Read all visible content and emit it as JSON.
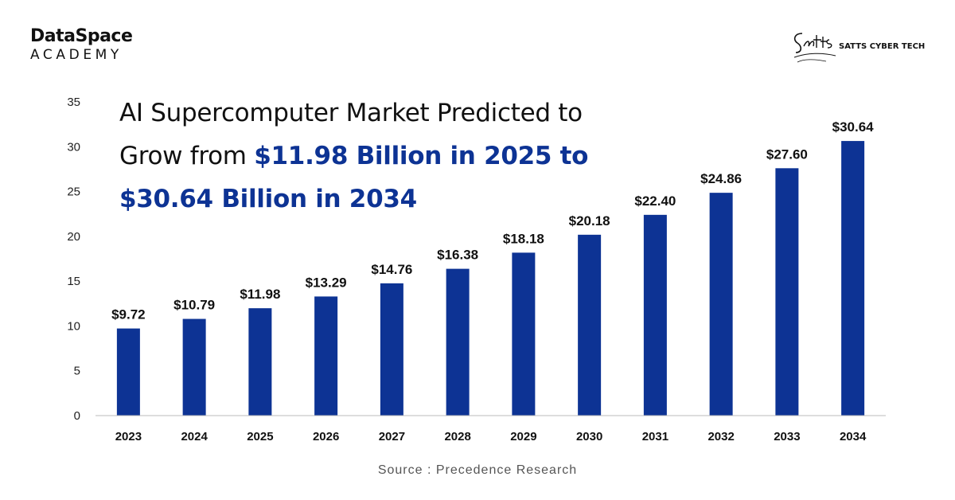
{
  "branding": {
    "left_line1": "DataSpace",
    "left_line2": "ACADEMY",
    "right_name": "SATTS CYBER TECH"
  },
  "title": {
    "line1": "AI Supercomputer Market Predicted to",
    "line2_prefix": "Grow from ",
    "line2_highlight": "$11.98 Billion in 2025 to",
    "line3_highlight": "$30.64 Billion in 2034"
  },
  "source": "Source : Precedence Research",
  "colors": {
    "bar": "#0d3394",
    "accent": "#0d3394",
    "text": "#111111"
  },
  "chart_data": {
    "type": "bar",
    "categories": [
      "2023",
      "2024",
      "2025",
      "2026",
      "2027",
      "2028",
      "2029",
      "2030",
      "2031",
      "2032",
      "2033",
      "2034"
    ],
    "values": [
      9.72,
      10.79,
      11.98,
      13.29,
      14.76,
      16.38,
      18.18,
      20.18,
      22.4,
      24.86,
      27.6,
      30.64
    ],
    "data_labels": [
      "$9.72",
      "$10.79",
      "$11.98",
      "$13.29",
      "$14.76",
      "$16.38",
      "$18.18",
      "$20.18",
      "$22.40",
      "$24.86",
      "$27.60",
      "$30.64"
    ],
    "yticks": [
      0,
      5,
      10,
      15,
      20,
      25,
      30,
      35
    ],
    "ylim": [
      0,
      35
    ],
    "title": "AI Supercomputer Market Predicted to Grow from $11.98 Billion in 2025 to $30.64 Billion in 2034",
    "xlabel": "",
    "ylabel": "",
    "grid": false
  }
}
